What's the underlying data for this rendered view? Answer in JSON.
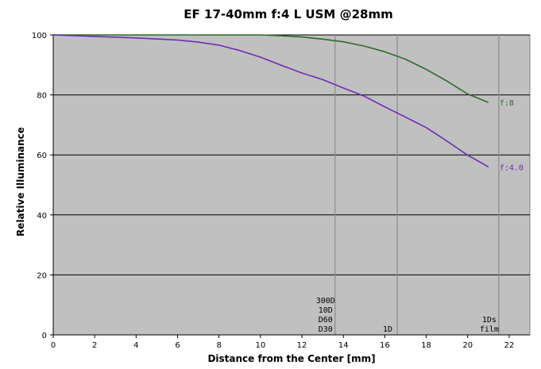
{
  "chart_data": {
    "type": "line",
    "title": "EF 17-40mm f:4 L USM  @28mm",
    "xlabel": "Distance from the Center [mm]",
    "ylabel": "Relative Illuminance",
    "xlim": [
      0,
      23
    ],
    "ylim": [
      0,
      100
    ],
    "xticks": [
      0,
      2,
      4,
      6,
      8,
      10,
      12,
      14,
      16,
      18,
      20,
      22
    ],
    "yticks": [
      0,
      20,
      40,
      60,
      80,
      100
    ],
    "grid": "horizontal",
    "colors": {
      "plot_bg": "#c0c0c0",
      "f8": "#2e6b2e",
      "f4": "#6a2fb4",
      "marker": "#8a8a8a"
    },
    "series": [
      {
        "name": "f:8",
        "x": [
          0,
          2,
          4,
          6,
          8,
          10,
          11,
          12,
          13,
          14,
          15,
          16,
          17,
          18,
          19,
          20,
          21
        ],
        "values": [
          100,
          100,
          100,
          100,
          100,
          100,
          99.7,
          99.3,
          98.6,
          97.7,
          96.3,
          94.4,
          91.9,
          88.5,
          84.6,
          80.3,
          77.5
        ]
      },
      {
        "name": "f:4.0",
        "x": [
          0,
          2,
          4,
          6,
          7,
          8,
          9,
          10,
          11,
          12,
          13,
          14,
          15,
          16,
          17,
          18,
          19,
          20,
          21
        ],
        "values": [
          100,
          99.5,
          99.0,
          98.3,
          97.6,
          96.6,
          94.8,
          92.6,
          89.9,
          87.3,
          85.1,
          82.3,
          79.6,
          76.0,
          72.6,
          69.1,
          64.6,
          59.9,
          56.0
        ]
      }
    ],
    "markers": [
      {
        "x": 13.6,
        "labels": [
          "300D",
          "10D",
          "D60",
          "D30"
        ]
      },
      {
        "x": 16.6,
        "labels": [
          "1D"
        ]
      },
      {
        "x": 21.5,
        "labels": [
          "1Ds",
          "film"
        ]
      }
    ]
  }
}
